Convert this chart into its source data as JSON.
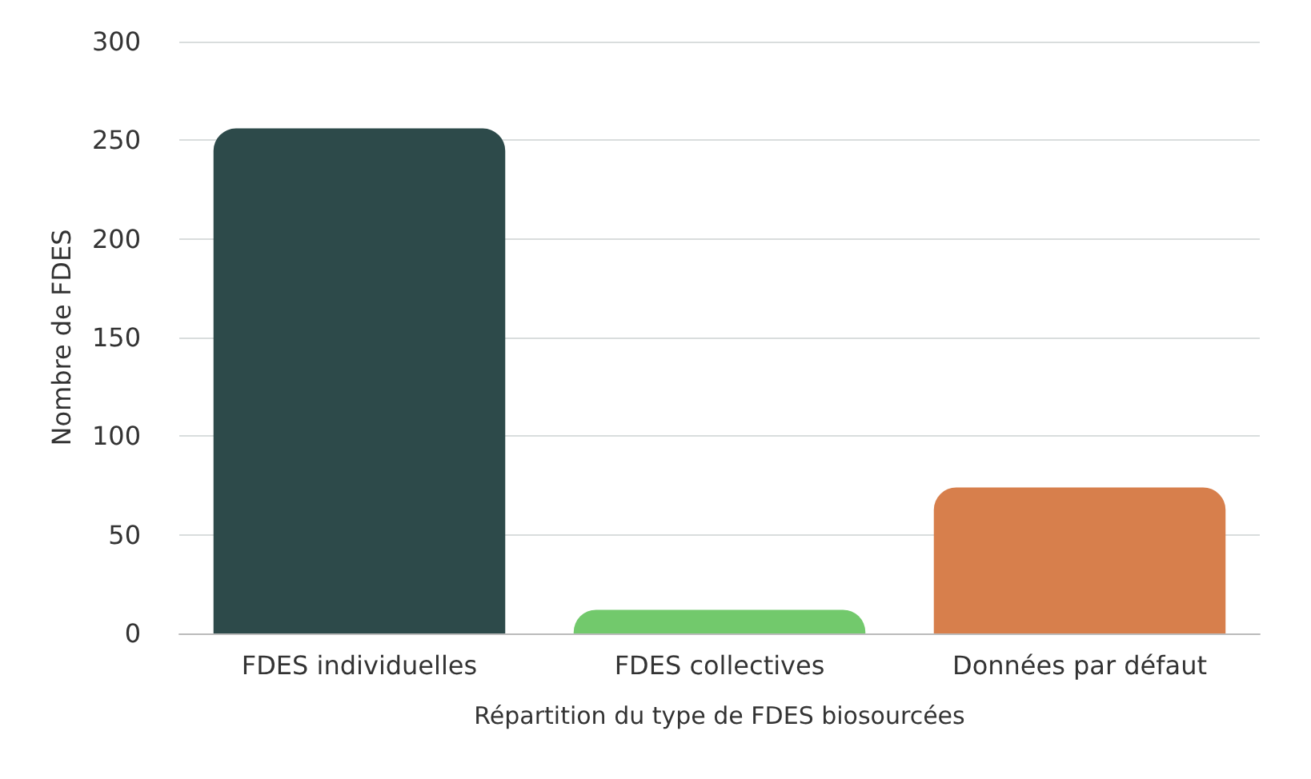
{
  "chart_data": {
    "type": "bar",
    "xlabel": "Répartition du type de FDES biosourcées",
    "ylabel": "Nombre de FDES",
    "categories": [
      "FDES individuelles",
      "FDES collectives",
      "Données par défaut"
    ],
    "values": [
      256,
      12,
      74
    ],
    "colors": [
      "#2d4a4a",
      "#72c96c",
      "#d77f4c"
    ],
    "ylim": [
      0,
      300
    ],
    "yticks": [
      0,
      50,
      100,
      150,
      200,
      250,
      300
    ],
    "grid": "y"
  }
}
